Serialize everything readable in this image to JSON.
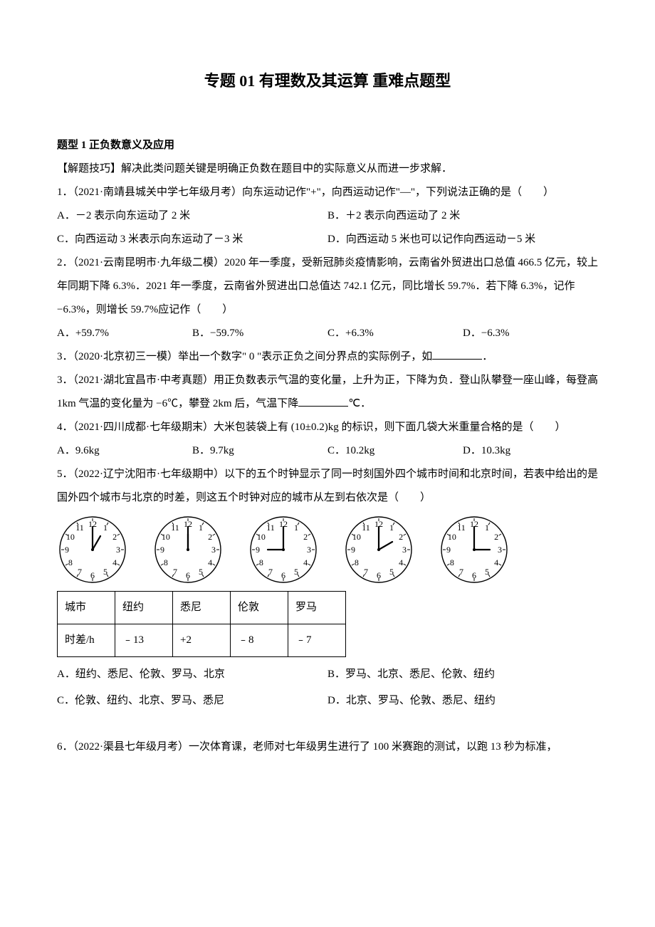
{
  "title": "专题 01 有理数及其运算 重难点题型",
  "section1": {
    "head": "题型 1 正负数意义及应用",
    "tip": "【解题技巧】解决此类问题关键是明确正负数在题目中的实际意义从而进一步求解．"
  },
  "q1": {
    "stem": "1．（2021·南靖县城关中学七年级月考）向东运动记作\"+\"，向西运动记作\"—\"，下列说法正确的是（　　）",
    "A": "A．－2 表示向东运动了 2 米",
    "B": "B．＋2 表示向西运动了 2 米",
    "C": "C．向西运动 3 米表示向东运动了－3 米",
    "D": "D．向西运动 5 米也可以记作向西运动－5 米"
  },
  "q2": {
    "stem": "2．（2021·云南昆明市·九年级二模）2020 年一季度，受新冠肺炎疫情影响，云南省外贸进出口总值 466.5 亿元，较上年同期下降 6.3%．2021 年一季度，云南省外贸进出口总值达 742.1 亿元，同比增长 59.7%．若下降 6.3%，记作 −6.3%，则增长 59.7%应记作（　　）",
    "A": "A．+59.7%",
    "B": "B．−59.7%",
    "C": "C．+6.3%",
    "D": "D．−6.3%"
  },
  "q3a": "3．（2020·北京初三一模）举出一个数字\" 0 \"表示正负之间分界点的实际例子，如",
  "q3a_tail": "．",
  "q3b": {
    "p1": "3．（2021·湖北宜昌市·中考真题）用正负数表示气温的变化量，上升为正，下降为负．登山队攀登一座山峰，每登高 1km 气温的变化量为 −6℃，攀登 2km 后，气温下降",
    "p2": "℃．"
  },
  "q4": {
    "stem": "4．（2021·四川成都·七年级期末）大米包装袋上有 (10±0.2)kg 的标识，则下面几袋大米重量合格的是（　　）",
    "A": "A．9.6kg",
    "B": "B．9.7kg",
    "C": "C．10.2kg",
    "D": "D．10.3kg"
  },
  "q5": {
    "stem": "5．（2022·辽宁沈阳市·七年级期中）以下的五个时钟显示了同一时刻国外四个城市时间和北京时间，若表中给出的是国外四个城市与北京的时差，则这五个时钟对应的城市从左到右依次是（　　）",
    "clocks": [
      {
        "hour": 1,
        "minute": 0
      },
      {
        "hour": 12,
        "minute": 0
      },
      {
        "hour": 9,
        "minute": 0
      },
      {
        "hour": 2,
        "minute": 0
      },
      {
        "hour": 3,
        "minute": 0
      }
    ],
    "table": {
      "r1": [
        "城市",
        "纽约",
        "悉尼",
        "伦敦",
        "罗马"
      ],
      "r2": [
        "时差/h",
        "﹣13",
        "+2",
        "﹣8",
        "﹣7"
      ]
    },
    "A": "A．纽约、悉尼、伦敦、罗马、北京",
    "B": "B．罗马、北京、悉尼、伦敦、纽约",
    "C": "C．伦敦、纽约、北京、罗马、悉尼",
    "D": "D．北京、罗马、伦敦、悉尼、纽约"
  },
  "q6": "6．（2022·渠县七年级月考）一次体育课，老师对七年级男生进行了 100 米赛跑的测试，以跑 13 秒为标准，",
  "clockStyle": {
    "radius": 46,
    "stroke": "#000000",
    "strokeWidth": 1.4,
    "numbers": [
      "12",
      "1",
      "2",
      "3",
      "4",
      "5",
      "6",
      "7",
      "8",
      "9",
      "10",
      "11"
    ],
    "numFontSize": 12,
    "numRadius": 36,
    "hourHandLen": 22,
    "minHandLen": 32,
    "handWidth": 2.2
  }
}
